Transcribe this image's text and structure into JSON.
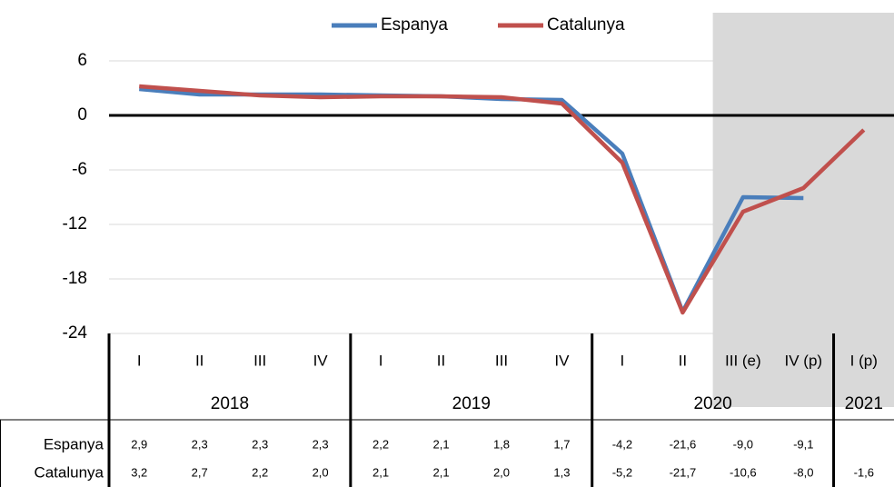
{
  "chart_data": {
    "type": "line",
    "categories": [
      "I",
      "II",
      "III",
      "IV",
      "I",
      "II",
      "III",
      "IV",
      "I",
      "II",
      "III (e)",
      "IV (p)",
      "I (p)"
    ],
    "groups": [
      {
        "name": "2018",
        "count": 4
      },
      {
        "name": "2019",
        "count": 4
      },
      {
        "name": "2020",
        "count": 4
      },
      {
        "name": "2021",
        "count": 1
      }
    ],
    "series": [
      {
        "name": "Espanya",
        "color": "#4a7ebb",
        "values": [
          2.9,
          2.3,
          2.3,
          2.3,
          2.2,
          2.1,
          1.8,
          1.7,
          -4.2,
          -21.6,
          -9.0,
          -9.1,
          null
        ],
        "value_labels": [
          "2,9",
          "2,3",
          "2,3",
          "2,3",
          "2,2",
          "2,1",
          "1,8",
          "1,7",
          "-4,2",
          "-21,6",
          "-9,0",
          "-9,1",
          null
        ]
      },
      {
        "name": "Catalunya",
        "color": "#c0504d",
        "values": [
          3.2,
          2.7,
          2.2,
          2.0,
          2.1,
          2.1,
          2.0,
          1.3,
          -5.2,
          -21.7,
          -10.6,
          -8.0,
          -1.6
        ],
        "value_labels": [
          "3,2",
          "2,7",
          "2,2",
          "2,0",
          "2,1",
          "2,1",
          "2,0",
          "1,3",
          "-5,2",
          "-21,7",
          "-10,6",
          "-8,0",
          "-1,6"
        ]
      }
    ],
    "ylim": [
      -24,
      11
    ],
    "yticks": [
      6,
      0,
      -6,
      -12,
      -18,
      -24
    ],
    "grid": true,
    "shade_start": 10,
    "legend": "top"
  }
}
